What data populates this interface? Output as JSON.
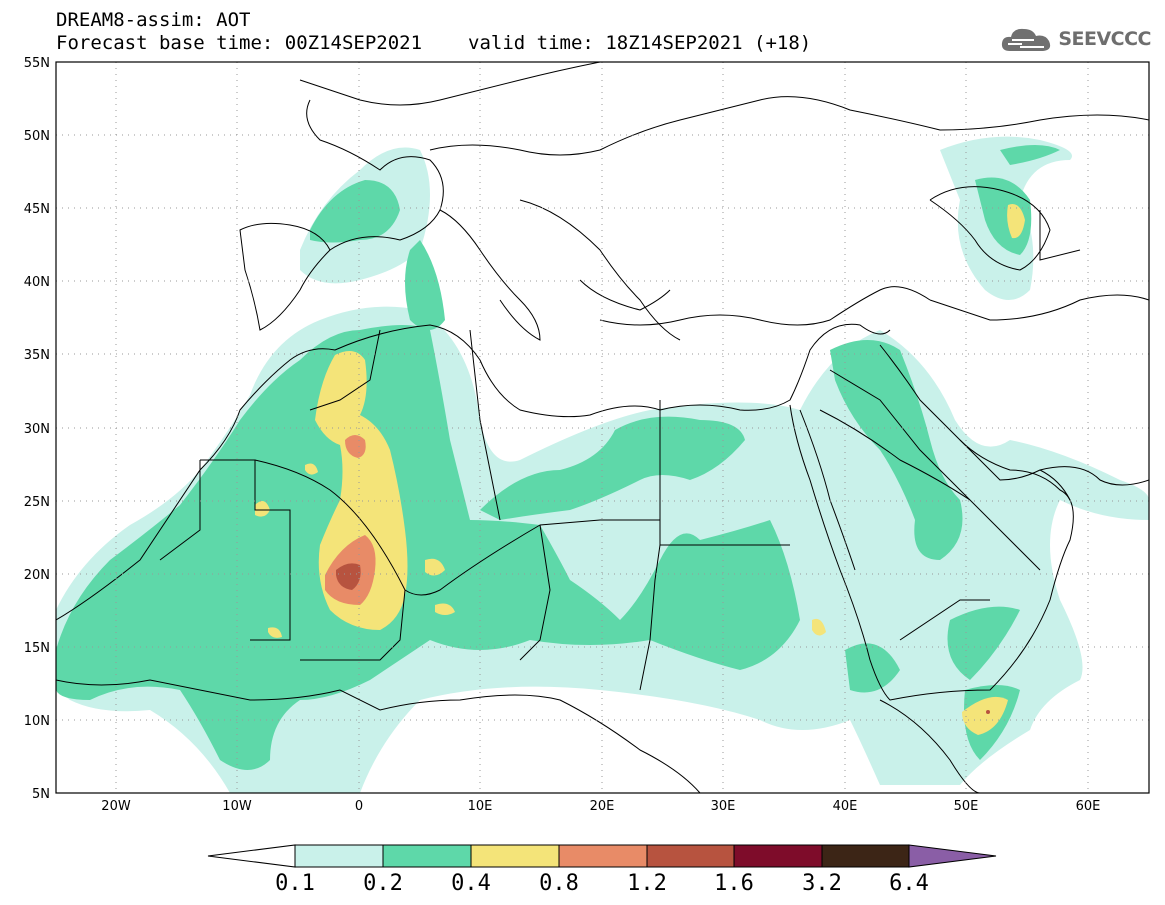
{
  "header": {
    "title": "DREAM8-assim: AOT",
    "base_time": "Forecast base time: 00Z14SEP2021",
    "valid_time": "valid time: 18Z14SEP2021 (+18)"
  },
  "logo": {
    "text": "SEEVCCC",
    "icon": "cloud-icon"
  },
  "map": {
    "lat_labels": [
      "55N",
      "50N",
      "45N",
      "40N",
      "35N",
      "30N",
      "25N",
      "20N",
      "15N",
      "10N",
      "5N"
    ],
    "lon_labels": [
      "20W",
      "10W",
      "0",
      "10E",
      "20E",
      "30E",
      "40E",
      "50E",
      "60E"
    ],
    "lon_range": [
      -25,
      65
    ],
    "lat_range": [
      5,
      55
    ],
    "grid": "dotted",
    "region": "North Africa, Middle East and Europe"
  },
  "colorbar": {
    "levels": [
      "0.1",
      "0.2",
      "0.4",
      "0.8",
      "1.2",
      "1.6",
      "3.2",
      "6.4"
    ],
    "colors": [
      "#c9f1ea",
      "#5ed8a9",
      "#f4e479",
      "#e88b67",
      "#b7533f",
      "#7e0c2a",
      "#3c2516",
      "#8a5ea6"
    ],
    "under_color": "#ffffff"
  }
}
